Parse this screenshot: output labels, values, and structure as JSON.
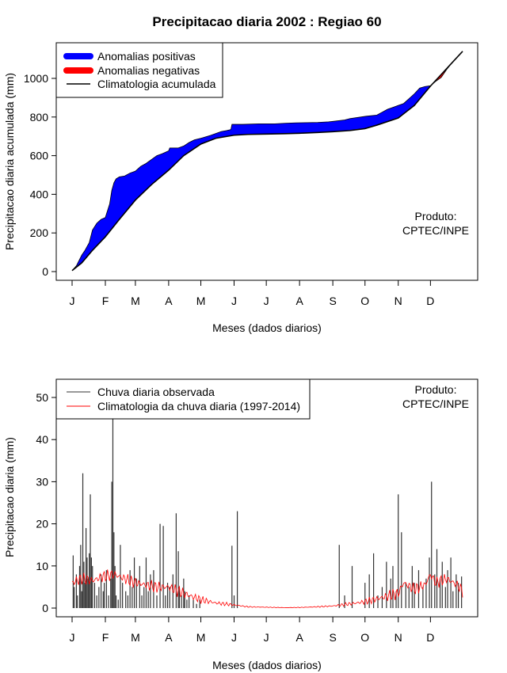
{
  "chart_data": [
    {
      "type": "area",
      "title": "Precipitacao diaria 2002 : Regiao 60",
      "xlabel": "Meses (dados diarios)",
      "ylabel": "Precipitacao diaria acumulada (mm)",
      "xlim": [
        1,
        365
      ],
      "ylim": [
        0,
        1150
      ],
      "yticks": [
        0,
        200,
        400,
        600,
        800,
        1000
      ],
      "month_labels": [
        "J",
        "F",
        "M",
        "A",
        "M",
        "J",
        "J",
        "A",
        "S",
        "O",
        "N",
        "D"
      ],
      "month_days": [
        1,
        32,
        60,
        91,
        121,
        152,
        182,
        213,
        244,
        274,
        305,
        335
      ],
      "legend": [
        "Anomalias positivas",
        "Anomalias negativas",
        "Climatologia acumulada"
      ],
      "legend_colors": [
        "#0000ff",
        "#ff0000",
        "#000000"
      ],
      "annotation": [
        "Produto:",
        "CPTEC/INPE"
      ],
      "climatology": {
        "x": [
          1,
          10,
          20,
          32,
          45,
          60,
          75,
          91,
          105,
          121,
          135,
          152,
          165,
          182,
          200,
          213,
          230,
          244,
          260,
          274,
          285,
          305,
          320,
          335,
          345,
          355,
          365
        ],
        "y": [
          5,
          45,
          110,
          180,
          270,
          370,
          450,
          525,
          600,
          660,
          690,
          706,
          710,
          712,
          714,
          716,
          720,
          724,
          730,
          740,
          758,
          795,
          860,
          960,
          1020,
          1080,
          1140
        ]
      },
      "observed": {
        "x": [
          1,
          5,
          10,
          13,
          17,
          20,
          24,
          28,
          32,
          36,
          38,
          40,
          42,
          45,
          50,
          55,
          60,
          65,
          70,
          75,
          80,
          85,
          91,
          92,
          100,
          105,
          110,
          115,
          121,
          130,
          140,
          145,
          149,
          150,
          160,
          175,
          190,
          200,
          210,
          230,
          240,
          245,
          255,
          260,
          265,
          270,
          275,
          285,
          290,
          295,
          300,
          305,
          310,
          315,
          320,
          325,
          330,
          335,
          340,
          345,
          350,
          355,
          360,
          365
        ],
        "y": [
          5,
          30,
          85,
          110,
          150,
          215,
          250,
          270,
          280,
          350,
          420,
          460,
          480,
          490,
          495,
          510,
          520,
          545,
          560,
          580,
          600,
          610,
          625,
          640,
          640,
          650,
          668,
          682,
          690,
          705,
          725,
          730,
          735,
          762,
          762,
          765,
          765,
          768,
          770,
          772,
          775,
          778,
          785,
          792,
          796,
          800,
          804,
          810,
          825,
          840,
          850,
          860,
          870,
          895,
          920,
          950,
          958,
          962,
          985,
          1005,
          1045,
          1080,
          1110,
          1140
        ]
      }
    },
    {
      "type": "bar",
      "xlabel": "Meses (dados diarios)",
      "ylabel": "Precipitacao diaria (mm)",
      "xlim": [
        1,
        365
      ],
      "ylim": [
        0,
        50
      ],
      "yticks": [
        0,
        10,
        20,
        30,
        40,
        50
      ],
      "month_labels": [
        "J",
        "F",
        "M",
        "A",
        "M",
        "J",
        "J",
        "A",
        "S",
        "O",
        "N",
        "D"
      ],
      "month_days": [
        1,
        32,
        60,
        91,
        121,
        152,
        182,
        213,
        244,
        274,
        305,
        335
      ],
      "legend": [
        "Chuva diaria observada",
        "Climatologia da chuva diaria (1997-2014)"
      ],
      "legend_colors": [
        "#333333",
        "#ff0000"
      ],
      "annotation": [
        "Produto:",
        "CPTEC/INPE"
      ],
      "observed_daily": {
        "days": [
          2,
          3,
          5,
          6,
          8,
          9,
          10,
          11,
          12,
          13,
          14,
          15,
          16,
          17,
          18,
          19,
          20,
          22,
          24,
          26,
          28,
          30,
          31,
          33,
          35,
          37,
          38,
          39,
          40,
          41,
          42,
          44,
          46,
          48,
          51,
          53,
          55,
          57,
          59,
          61,
          64,
          66,
          68,
          70,
          72,
          74,
          77,
          80,
          83,
          86,
          88,
          90,
          92,
          95,
          98,
          100,
          101,
          103,
          105,
          106,
          108,
          110,
          114,
          117,
          120,
          150,
          152,
          155,
          250,
          255,
          262,
          274,
          278,
          282,
          286,
          290,
          294,
          298,
          300,
          303,
          305,
          308,
          312,
          315,
          318,
          320,
          324,
          328,
          331,
          334,
          336,
          339,
          341,
          344,
          346,
          349,
          351,
          354,
          356,
          359,
          361,
          364
        ],
        "values": [
          12.5,
          5,
          8,
          3,
          10,
          15,
          4,
          32,
          11,
          6,
          19,
          12,
          7,
          13,
          27,
          12,
          10,
          6,
          3,
          5,
          8,
          4,
          6,
          9,
          3,
          7,
          30,
          45,
          18,
          10,
          3,
          2,
          15,
          6,
          4,
          3,
          9,
          5,
          12,
          7,
          10,
          3,
          5,
          12,
          4,
          8,
          9,
          3,
          20,
          19.5,
          3,
          6,
          5,
          8,
          22.5,
          13.5,
          5,
          3,
          7,
          4,
          2,
          3,
          2,
          1,
          2,
          14.8,
          3,
          23,
          15,
          3,
          10,
          6,
          8,
          13,
          3,
          5,
          11,
          7,
          10,
          4,
          27,
          18,
          6,
          5,
          10,
          6,
          9,
          5,
          7,
          12,
          30,
          8,
          14,
          7,
          11,
          5,
          9,
          12,
          4,
          8,
          6,
          7.5
        ],
        "colors_note": "dark grey thin bars"
      },
      "climatology_daily": {
        "x": [
          1,
          10,
          20,
          30,
          40,
          50,
          60,
          70,
          80,
          91,
          100,
          110,
          121,
          135,
          150,
          165,
          182,
          200,
          213,
          230,
          244,
          260,
          274,
          290,
          305,
          310,
          320,
          330,
          335,
          340,
          350,
          360,
          365
        ],
        "y": [
          6,
          7,
          6.5,
          7.5,
          8,
          7,
          6,
          5.5,
          5,
          5,
          4,
          3,
          2,
          1.2,
          0.8,
          0.3,
          0.2,
          0.1,
          0.15,
          0.3,
          0.5,
          1,
          1.5,
          2.5,
          3.5,
          6,
          4.5,
          5.5,
          8,
          6,
          7,
          5.5,
          4
        ]
      }
    }
  ]
}
